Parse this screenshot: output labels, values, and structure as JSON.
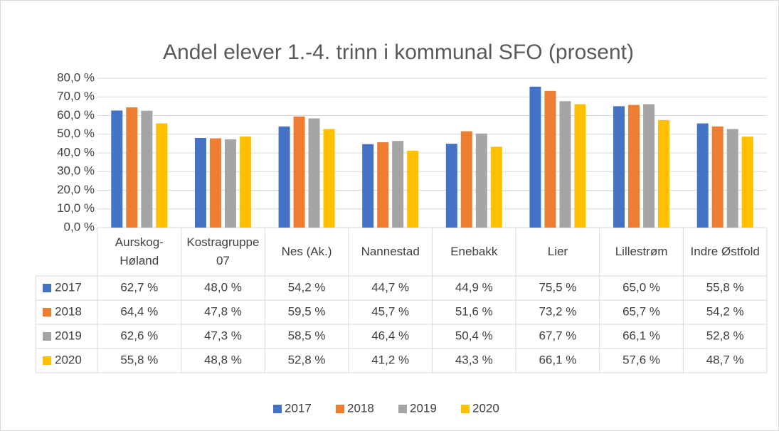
{
  "chart_data": {
    "type": "bar",
    "title": "Andel elever 1.-4. trinn i kommunal SFO (prosent)",
    "categories": [
      "Aurskog-Høland",
      "Kostragruppe 07",
      "Nes (Ak.)",
      "Nannestad",
      "Enebakk",
      "Lier",
      "Lillestrøm",
      "Indre Østfold"
    ],
    "series": [
      {
        "name": "2017",
        "color": "#4472c4",
        "values": [
          62.7,
          48.0,
          54.2,
          44.7,
          44.9,
          75.5,
          65.0,
          55.8
        ],
        "value_labels": [
          "62,7 %",
          "48,0 %",
          "54,2 %",
          "44,7 %",
          "44,9 %",
          "75,5 %",
          "65,0 %",
          "55,8 %"
        ]
      },
      {
        "name": "2018",
        "color": "#ed7d31",
        "values": [
          64.4,
          47.8,
          59.5,
          45.7,
          51.6,
          73.2,
          65.7,
          54.2
        ],
        "value_labels": [
          "64,4 %",
          "47,8 %",
          "59,5 %",
          "45,7 %",
          "51,6 %",
          "73,2 %",
          "65,7 %",
          "54,2 %"
        ]
      },
      {
        "name": "2019",
        "color": "#a5a5a5",
        "values": [
          62.6,
          47.3,
          58.5,
          46.4,
          50.4,
          67.7,
          66.1,
          52.8
        ],
        "value_labels": [
          "62,6 %",
          "47,3 %",
          "58,5 %",
          "46,4 %",
          "50,4 %",
          "67,7 %",
          "66,1 %",
          "52,8 %"
        ]
      },
      {
        "name": "2020",
        "color": "#ffc000",
        "values": [
          55.8,
          48.8,
          52.8,
          41.2,
          43.3,
          66.1,
          57.6,
          48.7
        ],
        "value_labels": [
          "55,8 %",
          "48,8 %",
          "52,8 %",
          "41,2 %",
          "43,3 %",
          "66,1 %",
          "57,6 %",
          "48,7 %"
        ]
      }
    ],
    "ylim": [
      0,
      80
    ],
    "yticks": [
      {
        "value": 0,
        "label": "0,0 %"
      },
      {
        "value": 10,
        "label": "10,0 %"
      },
      {
        "value": 20,
        "label": "20,0 %"
      },
      {
        "value": 30,
        "label": "30,0 %"
      },
      {
        "value": 40,
        "label": "40,0 %"
      },
      {
        "value": 50,
        "label": "50,0 %"
      },
      {
        "value": 60,
        "label": "60,0 %"
      },
      {
        "value": 70,
        "label": "70,0 %"
      },
      {
        "value": 80,
        "label": "80,0 %"
      }
    ],
    "grid": true
  }
}
